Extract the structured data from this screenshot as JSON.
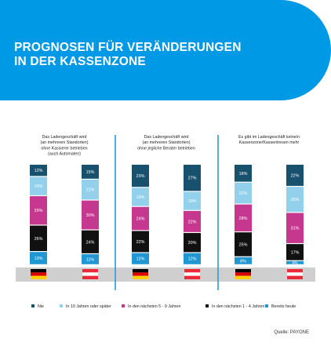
{
  "header": {
    "title_line1": "PROGNOSEN FÜR VERÄNDERUNGEN",
    "title_line2": "IN DER KASSENZONE",
    "banner_color": "#0099e6"
  },
  "colors": {
    "nie": "#17516e",
    "spaeter": "#92d0ec",
    "fuenf_neun": "#c6388f",
    "eins_vier": "#111111",
    "bereits": "#2096d2",
    "divider": "#2a9ad6",
    "flag_band": "#cfcfcf"
  },
  "chart_data": {
    "type": "bar",
    "stacked": true,
    "orientation": "vertical",
    "legend_position": "bottom",
    "legend": [
      {
        "key": "nie",
        "label": "Nie"
      },
      {
        "key": "spaeter",
        "label": "In 10 Jahren oder später"
      },
      {
        "key": "fuenf_neun",
        "label": "In den nächsten 5 - 9 Jahren"
      },
      {
        "key": "eins_vier",
        "label": "In den nächsten 1 - 4 Jahren"
      },
      {
        "key": "bereits",
        "label": "Bereits heute"
      }
    ],
    "groups": [
      {
        "title": [
          "Das Ladengeschäft wird",
          "(an mehreren Standorten)",
          "ohne Kassierer betrieben",
          "(auch Automaten)"
        ],
        "bars": [
          {
            "country": "Deutschland",
            "flag": "de",
            "values": {
              "nie": 12,
              "spaeter": 19,
              "fuenf_neun": 29,
              "eins_vier": 26,
              "bereits": 13
            }
          },
          {
            "country": "Österreich",
            "flag": "at",
            "values": {
              "nie": 15,
              "spaeter": 21,
              "fuenf_neun": 30,
              "eins_vier": 24,
              "bereits": 11
            }
          }
        ]
      },
      {
        "title": [
          "Das Ladengeschäft wird",
          "(an mehreren Standorten)",
          "ohne jegliche Berater betrieben"
        ],
        "bars": [
          {
            "country": "Deutschland",
            "flag": "de",
            "values": {
              "nie": 23,
              "spaeter": 19,
              "fuenf_neun": 24,
              "eins_vier": 22,
              "bereits": 12
            }
          },
          {
            "country": "Österreich",
            "flag": "at",
            "values": {
              "nie": 27,
              "spaeter": 19,
              "fuenf_neun": 22,
              "eins_vier": 20,
              "bereits": 12
            }
          }
        ]
      },
      {
        "title": [
          "Es gibt im Ladengeschäft keine/n",
          "Kassenzone/Kassentresen mehr"
        ],
        "bars": [
          {
            "country": "Deutschland",
            "flag": "de",
            "values": {
              "nie": 18,
              "spaeter": 22,
              "fuenf_neun": 28,
              "eins_vier": 25,
              "bereits": 8
            }
          },
          {
            "country": "Österreich",
            "flag": "at",
            "values": {
              "nie": 22,
              "spaeter": 26,
              "fuenf_neun": 31,
              "eins_vier": 17,
              "bereits": 4
            }
          }
        ]
      }
    ],
    "segment_order": [
      "nie",
      "spaeter",
      "fuenf_neun",
      "eins_vier",
      "bereits"
    ],
    "value_suffix": "%"
  },
  "source": "Quelle: PAYONE"
}
